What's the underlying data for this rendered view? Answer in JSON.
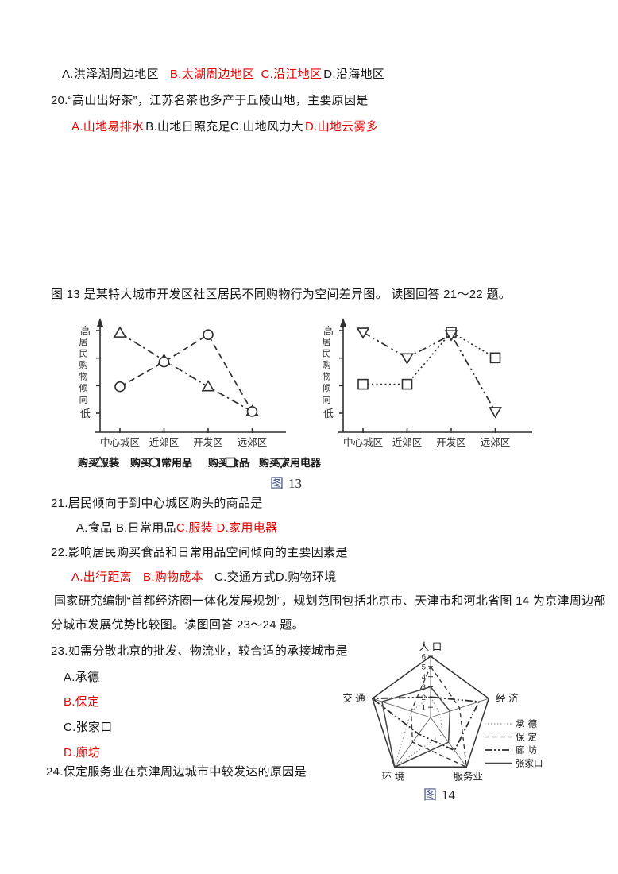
{
  "colors": {
    "red": "#e60000",
    "ink": "#161616",
    "chart_ink": "#2f2f2f",
    "caption_blue": "#44548a"
  },
  "q19": {
    "options": [
      {
        "text": "A.洪泽湖周边地区",
        "color": "black"
      },
      {
        "text": "B.太湖周边地区",
        "color": "red"
      },
      {
        "text": "C.沿江地区",
        "color": "red"
      },
      {
        "text": "D.沿海地区",
        "color": "black"
      }
    ]
  },
  "q20": {
    "stem": "20.“高山出好茶”，江苏名茶也多产于丘陵山地，主要原因是",
    "options": [
      {
        "text": "A.山地易排水",
        "color": "red"
      },
      {
        "text": "B.山地日照充足",
        "color": "black"
      },
      {
        "text": "C.山地风力大",
        "color": "black"
      },
      {
        "text": "D.山地云雾多",
        "color": "red"
      }
    ]
  },
  "fig13_intro": "图 13 是某特大城市开发区社区居民不同购物行为空间差异图。  读图回答 21～22 题。",
  "fig13_caption": {
    "fig": "图",
    "num": "13"
  },
  "q21": {
    "stem": "21.居民倾向于到中心城区购头的商品是",
    "options": [
      {
        "text": "A.食品 B.日常用品",
        "color": "black"
      },
      {
        "text": "C.服装 D.家用电器",
        "color": "red"
      }
    ]
  },
  "q22": {
    "stem": "22.影响居民购买食品和日常用品空间倾向的主要因素是",
    "options": [
      {
        "text": "A.出行距离",
        "color": "red"
      },
      {
        "text": "B.购物成本",
        "color": "red"
      },
      {
        "text": "C.交通方式D.购物环境",
        "color": "black"
      }
    ]
  },
  "para2": {
    "line1": "国家研究编制“首都经济圈一体化发展规划”，规划范围包括北京市、天津市和河北省图 14 为京津周边部",
    "line2": "分城市发展优势比较图。读图回答 23～24 题。"
  },
  "q23": {
    "stem": "23.如需分散北京的批发、物流业，较合适的承接城市是",
    "options": [
      {
        "text": "A.承德",
        "color": "black"
      },
      {
        "text": "B.保定",
        "color": "red"
      },
      {
        "text": "C.张家口",
        "color": "black"
      },
      {
        "text": "D.廊坊",
        "color": "red"
      }
    ]
  },
  "q24": {
    "stem": "24.保定服务业在京津周边城市中较发达的原因是"
  },
  "fig14_caption": {
    "fig": "图",
    "num": "14"
  },
  "chart_data": [
    {
      "type": "line",
      "figure": "图13 左图",
      "title": "",
      "ylabel": "居民购物倾向",
      "y_axis": {
        "high": "高",
        "low": "低",
        "range": [
          0,
          1
        ],
        "grid": false
      },
      "categories": [
        "中心城区",
        "近郊区",
        "开发区",
        "远郊区"
      ],
      "series": [
        {
          "name": "购买服装",
          "marker": "triangle",
          "line": "dashdot",
          "values": [
            0.97,
            0.64,
            0.32,
            0.02
          ]
        },
        {
          "name": "购买日常用品",
          "marker": "circle",
          "line": "dashed",
          "values": [
            0.32,
            0.62,
            0.95,
            0.02
          ]
        }
      ]
    },
    {
      "type": "line",
      "figure": "图13 右图",
      "title": "",
      "ylabel": "居民购物倾向",
      "y_axis": {
        "high": "高",
        "low": "低",
        "range": [
          0,
          1
        ],
        "grid": false
      },
      "categories": [
        "中心城区",
        "近郊区",
        "开发区",
        "远郊区"
      ],
      "series": [
        {
          "name": "购买食品",
          "marker": "square",
          "line": "dotted",
          "values": [
            0.35,
            0.35,
            0.98,
            0.67
          ]
        },
        {
          "name": "购买家用电器",
          "marker": "invtriangle",
          "line": "dashdotdot",
          "values": [
            0.98,
            0.67,
            0.95,
            0.02
          ]
        }
      ]
    },
    {
      "type": "radar",
      "figure": "图14",
      "title": "京津周边部分城市发展优势比较图",
      "axes": [
        "人口",
        "经济",
        "服务业",
        "环境",
        "交通"
      ],
      "axis_labels": [
        "人 口",
        "经 济",
        "服务业",
        "环 境",
        "交 通"
      ],
      "scale": [
        0,
        6
      ],
      "ticks": [
        1,
        2,
        3,
        4,
        5,
        6
      ],
      "legend_position": "right",
      "series": [
        {
          "name": "承德",
          "line": "dotted",
          "values": [
            2,
            1,
            2,
            6,
            2
          ]
        },
        {
          "name": "保定",
          "line": "dashed",
          "values": [
            5,
            3,
            6,
            3,
            2
          ]
        },
        {
          "name": "廊坊",
          "line": "dashdotdot",
          "values": [
            2,
            5,
            4,
            2,
            6
          ]
        },
        {
          "name": "张家口",
          "line": "solid",
          "values": [
            3,
            2,
            3,
            6,
            5
          ]
        }
      ]
    }
  ]
}
